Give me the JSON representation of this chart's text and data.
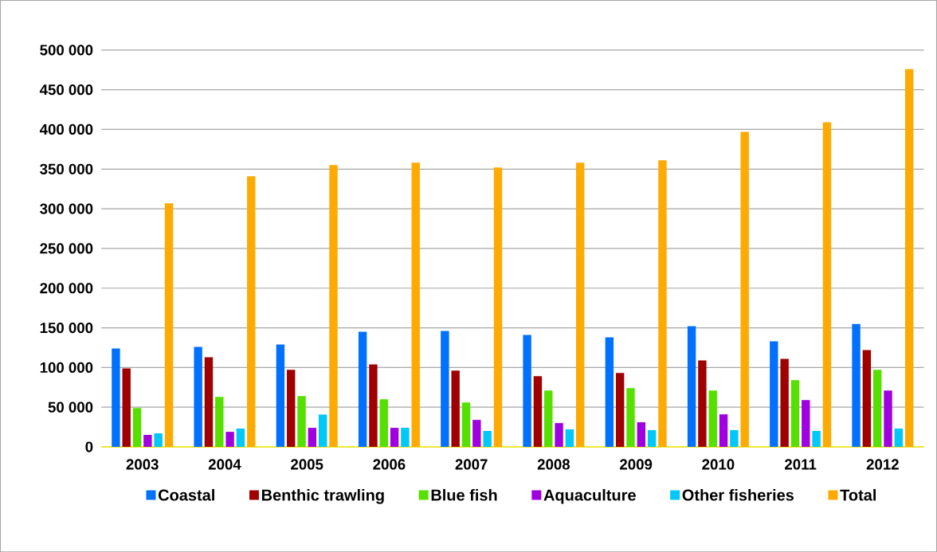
{
  "chart_data": {
    "type": "bar",
    "categories": [
      "2003",
      "2004",
      "2005",
      "2006",
      "2007",
      "2008",
      "2009",
      "2010",
      "2011",
      "2012"
    ],
    "series": [
      {
        "name": "Coastal",
        "color": "#0070ff",
        "values": [
          124000,
          126000,
          129000,
          145000,
          146000,
          141000,
          138000,
          152000,
          133000,
          155000
        ]
      },
      {
        "name": "Benthic trawling",
        "color": "#a00000",
        "values": [
          99000,
          113000,
          97000,
          104000,
          96000,
          89000,
          93000,
          109000,
          111000,
          122000
        ]
      },
      {
        "name": "Blue fish",
        "color": "#55e000",
        "values": [
          49000,
          63000,
          64000,
          60000,
          56000,
          71000,
          74000,
          71000,
          84000,
          97000
        ]
      },
      {
        "name": "Aquaculture",
        "color": "#a000e0",
        "values": [
          15000,
          19000,
          24000,
          24000,
          34000,
          30000,
          31000,
          41000,
          59000,
          71000
        ]
      },
      {
        "name": "Other fisheries",
        "color": "#00c8f8",
        "values": [
          17000,
          23000,
          41000,
          24000,
          20000,
          22000,
          21000,
          21000,
          20000,
          23000
        ]
      },
      {
        "name": "Total",
        "color": "#ffaa00",
        "values": [
          307000,
          341000,
          355000,
          358000,
          352000,
          358000,
          361000,
          397000,
          409000,
          476000
        ]
      }
    ],
    "ylim": [
      0,
      500000
    ],
    "yticks": [
      {
        "value": 0,
        "label": "0"
      },
      {
        "value": 50000,
        "label": "50 000"
      },
      {
        "value": 100000,
        "label": "100 000"
      },
      {
        "value": 150000,
        "label": "150 000"
      },
      {
        "value": 200000,
        "label": "200 000"
      },
      {
        "value": 250000,
        "label": "250 000"
      },
      {
        "value": 300000,
        "label": "300 000"
      },
      {
        "value": 350000,
        "label": "350 000"
      },
      {
        "value": 400000,
        "label": "400 000"
      },
      {
        "value": 450000,
        "label": "450 000"
      },
      {
        "value": 500000,
        "label": "500 000"
      }
    ],
    "grid": "y",
    "legend": "bottom"
  }
}
